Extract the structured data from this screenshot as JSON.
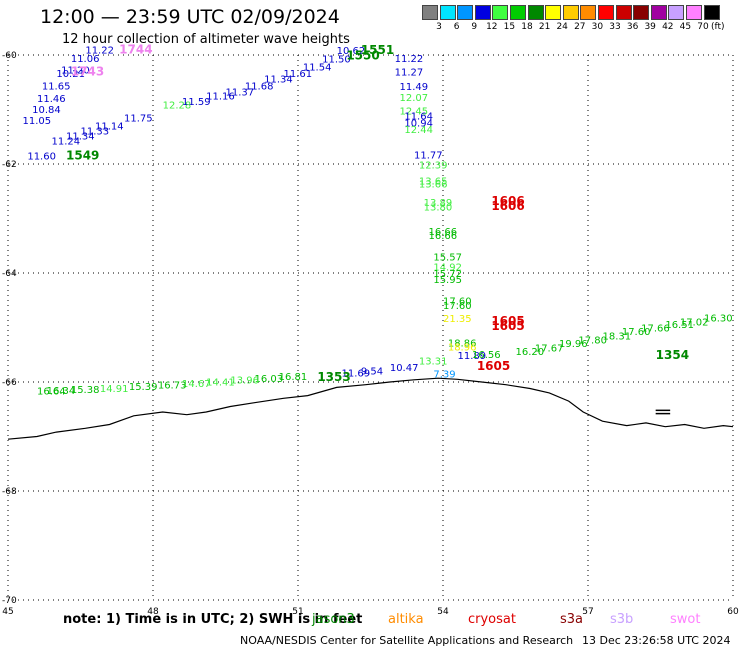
{
  "title": "12:00 — 23:59 UTC 02/09/2024",
  "subtitle": "12 hour collection of altimeter wave heights",
  "legend": {
    "units": "(ft)",
    "bins": [
      {
        "label": "3",
        "color": "#808080"
      },
      {
        "label": "6",
        "color": "#00e5ff"
      },
      {
        "label": "9",
        "color": "#0096ff"
      },
      {
        "label": "12",
        "color": "#0000e0"
      },
      {
        "label": "15",
        "color": "#40ff40"
      },
      {
        "label": "18",
        "color": "#00cc00"
      },
      {
        "label": "21",
        "color": "#008800"
      },
      {
        "label": "24",
        "color": "#ffff00"
      },
      {
        "label": "27",
        "color": "#ffcc00"
      },
      {
        "label": "30",
        "color": "#ff8c00"
      },
      {
        "label": "33",
        "color": "#ff0000"
      },
      {
        "label": "36",
        "color": "#cc0000"
      },
      {
        "label": "39",
        "color": "#880000"
      },
      {
        "label": "42",
        "color": "#a000a0"
      },
      {
        "label": "45",
        "color": "#c8a0ff"
      },
      {
        "label": "70",
        "color": "#ff80ff"
      },
      {
        "label": "",
        "color": "#000000"
      }
    ]
  },
  "map": {
    "lon_ticks": [
      "45",
      "48",
      "51",
      "54",
      "57",
      "60"
    ],
    "lat_ticks": [
      "-60",
      "-62",
      "-64",
      "-66",
      "-68",
      "-70"
    ],
    "passes": [
      {
        "time": "1744",
        "lon": 47.3,
        "lat": -59.97,
        "color": "#ee82ee"
      },
      {
        "time": "1743",
        "lon": 46.3,
        "lat": -60.38,
        "color": "#ee82ee"
      },
      {
        "time": "1549",
        "lon": 46.2,
        "lat": -61.92,
        "color": "#008800"
      },
      {
        "time": "1551",
        "lon": 52.3,
        "lat": -59.98,
        "color": "#008800"
      },
      {
        "time": "1550",
        "lon": 52.0,
        "lat": -60.08,
        "color": "#008800"
      },
      {
        "time": "1606",
        "lon": 55.0,
        "lat": -62.75,
        "color": "#dd0000"
      },
      {
        "time": "1606",
        "lon": 55.0,
        "lat": -62.84,
        "color": "#dd0000"
      },
      {
        "time": "1605",
        "lon": 55.0,
        "lat": -64.95,
        "color": "#dd0000"
      },
      {
        "time": "1605",
        "lon": 55.0,
        "lat": -65.05,
        "color": "#dd0000"
      },
      {
        "time": "1605",
        "lon": 54.7,
        "lat": -65.78,
        "color": "#dd0000"
      },
      {
        "time": "1354",
        "lon": 58.4,
        "lat": -65.58,
        "color": "#008800"
      },
      {
        "time": "1353",
        "lon": 51.4,
        "lat": -65.98,
        "color": "#008800"
      }
    ],
    "values": [
      {
        "v": "11.22",
        "lon": 46.6,
        "lat": -59.97,
        "color": "#0000cc"
      },
      {
        "v": "11.06",
        "lon": 46.3,
        "lat": -60.13,
        "color": "#0000cc"
      },
      {
        "v": "11.20",
        "lon": 46.1,
        "lat": -60.34,
        "color": "#0000cc"
      },
      {
        "v": "10.21",
        "lon": 46.0,
        "lat": -60.4,
        "color": "#0000cc"
      },
      {
        "v": "11.65",
        "lon": 45.7,
        "lat": -60.63,
        "color": "#0000cc"
      },
      {
        "v": "11.46",
        "lon": 45.6,
        "lat": -60.86,
        "color": "#0000cc"
      },
      {
        "v": "10.84",
        "lon": 45.5,
        "lat": -61.06,
        "color": "#0000cc"
      },
      {
        "v": "11.05",
        "lon": 45.3,
        "lat": -61.27,
        "color": "#0000cc"
      },
      {
        "v": "11.24",
        "lon": 45.9,
        "lat": -61.64,
        "color": "#0000cc"
      },
      {
        "v": "11.34",
        "lon": 46.2,
        "lat": -61.55,
        "color": "#0000cc"
      },
      {
        "v": "11.33",
        "lon": 46.5,
        "lat": -61.46,
        "color": "#0000cc"
      },
      {
        "v": "11.14",
        "lon": 46.8,
        "lat": -61.37,
        "color": "#0000cc"
      },
      {
        "v": "11.75",
        "lon": 47.4,
        "lat": -61.22,
        "color": "#0000cc"
      },
      {
        "v": "11.60",
        "lon": 45.4,
        "lat": -61.92,
        "color": "#0000cc"
      },
      {
        "v": "12.28",
        "lon": 48.2,
        "lat": -60.98,
        "color": "#40ee40"
      },
      {
        "v": "11.59",
        "lon": 48.6,
        "lat": -60.92,
        "color": "#0000cc"
      },
      {
        "v": "11.16",
        "lon": 49.1,
        "lat": -60.82,
        "color": "#0000cc"
      },
      {
        "v": "11.37",
        "lon": 49.5,
        "lat": -60.74,
        "color": "#0000cc"
      },
      {
        "v": "11.68",
        "lon": 49.9,
        "lat": -60.63,
        "color": "#0000cc"
      },
      {
        "v": "11.34",
        "lon": 50.3,
        "lat": -60.5,
        "color": "#0000cc"
      },
      {
        "v": "11.61",
        "lon": 50.7,
        "lat": -60.4,
        "color": "#0000cc"
      },
      {
        "v": "11.54",
        "lon": 51.1,
        "lat": -60.28,
        "color": "#0000cc"
      },
      {
        "v": "11.50",
        "lon": 51.5,
        "lat": -60.14,
        "color": "#0000cc"
      },
      {
        "v": "10.62",
        "lon": 51.8,
        "lat": -59.98,
        "color": "#0000cc"
      },
      {
        "v": "11.22",
        "lon": 53.0,
        "lat": -60.13,
        "color": "#0000cc"
      },
      {
        "v": "11.27",
        "lon": 53.0,
        "lat": -60.38,
        "color": "#0000cc"
      },
      {
        "v": "11.49",
        "lon": 53.1,
        "lat": -60.64,
        "color": "#0000cc"
      },
      {
        "v": "12.07",
        "lon": 53.1,
        "lat": -60.84,
        "color": "#40ee40"
      },
      {
        "v": "12.45",
        "lon": 53.1,
        "lat": -61.09,
        "color": "#40ee40"
      },
      {
        "v": "11.64",
        "lon": 53.2,
        "lat": -61.18,
        "color": "#0000cc"
      },
      {
        "v": "10.94",
        "lon": 53.2,
        "lat": -61.31,
        "color": "#0000cc"
      },
      {
        "v": "12.44",
        "lon": 53.2,
        "lat": -61.43,
        "color": "#40ee40"
      },
      {
        "v": "11.77",
        "lon": 53.4,
        "lat": -61.9,
        "color": "#0000cc"
      },
      {
        "v": "12.39",
        "lon": 53.5,
        "lat": -62.08,
        "color": "#40ee40"
      },
      {
        "v": "13.65",
        "lon": 53.5,
        "lat": -62.38,
        "color": "#40ee40"
      },
      {
        "v": "13.66",
        "lon": 53.5,
        "lat": -62.43,
        "color": "#40ee40"
      },
      {
        "v": "13.89",
        "lon": 53.6,
        "lat": -62.77,
        "color": "#40ee40"
      },
      {
        "v": "13.80",
        "lon": 53.6,
        "lat": -62.85,
        "color": "#40ee40"
      },
      {
        "v": "16.66",
        "lon": 53.7,
        "lat": -63.3,
        "color": "#00bb00"
      },
      {
        "v": "16.66",
        "lon": 53.7,
        "lat": -63.38,
        "color": "#00bb00"
      },
      {
        "v": "15.57",
        "lon": 53.8,
        "lat": -63.77,
        "color": "#00bb00"
      },
      {
        "v": "14.92",
        "lon": 53.8,
        "lat": -63.95,
        "color": "#40ee40"
      },
      {
        "v": "15.72",
        "lon": 53.8,
        "lat": -64.07,
        "color": "#00bb00"
      },
      {
        "v": "15.95",
        "lon": 53.8,
        "lat": -64.18,
        "color": "#00bb00"
      },
      {
        "v": "17.60",
        "lon": 54.0,
        "lat": -64.58,
        "color": "#00bb00"
      },
      {
        "v": "17.60",
        "lon": 54.0,
        "lat": -64.66,
        "color": "#00bb00"
      },
      {
        "v": "21.35",
        "lon": 54.0,
        "lat": -64.9,
        "color": "#eeee00"
      },
      {
        "v": "18.86",
        "lon": 54.1,
        "lat": -65.35,
        "color": "#00bb00"
      },
      {
        "v": "18.96",
        "lon": 54.1,
        "lat": -65.42,
        "color": "#eeee00"
      },
      {
        "v": "11.89",
        "lon": 54.3,
        "lat": -65.58,
        "color": "#0000cc"
      },
      {
        "v": "16.56",
        "lon": 54.6,
        "lat": -65.56,
        "color": "#00bb00"
      },
      {
        "v": "16.20",
        "lon": 55.5,
        "lat": -65.5,
        "color": "#00bb00"
      },
      {
        "v": "17.67",
        "lon": 55.9,
        "lat": -65.44,
        "color": "#00bb00"
      },
      {
        "v": "19.96",
        "lon": 56.4,
        "lat": -65.36,
        "color": "#00bb00"
      },
      {
        "v": "17.80",
        "lon": 56.8,
        "lat": -65.29,
        "color": "#00bb00"
      },
      {
        "v": "18.31",
        "lon": 57.3,
        "lat": -65.22,
        "color": "#00bb00"
      },
      {
        "v": "17.60",
        "lon": 57.7,
        "lat": -65.14,
        "color": "#00bb00"
      },
      {
        "v": "17.66",
        "lon": 58.1,
        "lat": -65.07,
        "color": "#00bb00"
      },
      {
        "v": "16.51",
        "lon": 58.6,
        "lat": -65.01,
        "color": "#00bb00"
      },
      {
        "v": "17.02",
        "lon": 58.9,
        "lat": -64.96,
        "color": "#00bb00"
      },
      {
        "v": "16.30",
        "lon": 59.4,
        "lat": -64.89,
        "color": "#00bb00"
      },
      {
        "v": "13.31",
        "lon": 53.5,
        "lat": -65.68,
        "color": "#40ee40"
      },
      {
        "v": "7.39",
        "lon": 53.8,
        "lat": -65.92,
        "color": "#0096ff"
      },
      {
        "v": "10.47",
        "lon": 52.9,
        "lat": -65.8,
        "color": "#0000cc"
      },
      {
        "v": "9.54",
        "lon": 52.3,
        "lat": -65.86,
        "color": "#0000cc"
      },
      {
        "v": "11.69",
        "lon": 51.9,
        "lat": -65.9,
        "color": "#0000cc"
      },
      {
        "v": "16.81",
        "lon": 50.6,
        "lat": -65.96,
        "color": "#00bb00"
      },
      {
        "v": "16.03",
        "lon": 50.1,
        "lat": -66.0,
        "color": "#00bb00"
      },
      {
        "v": "13.96",
        "lon": 49.6,
        "lat": -66.03,
        "color": "#40ee40"
      },
      {
        "v": "14.41",
        "lon": 49.1,
        "lat": -66.06,
        "color": "#40ee40"
      },
      {
        "v": "14.67",
        "lon": 48.6,
        "lat": -66.09,
        "color": "#40ee40"
      },
      {
        "v": "16.73",
        "lon": 48.1,
        "lat": -66.12,
        "color": "#00bb00"
      },
      {
        "v": "15.39",
        "lon": 47.5,
        "lat": -66.15,
        "color": "#00bb00"
      },
      {
        "v": "14.91",
        "lon": 46.9,
        "lat": -66.18,
        "color": "#40ee40"
      },
      {
        "v": "15.38",
        "lon": 46.3,
        "lat": -66.2,
        "color": "#00bb00"
      },
      {
        "v": "16.34",
        "lon": 45.8,
        "lat": -66.22,
        "color": "#00bb00"
      },
      {
        "v": "16.64",
        "lon": 45.6,
        "lat": -66.23,
        "color": "#00bb00"
      }
    ]
  },
  "footer": {
    "note": "note:  1) Time is in UTC; 2) SWH is in feet",
    "satellites": [
      {
        "name": "jason3",
        "color": "#008800"
      },
      {
        "name": "altika",
        "color": "#ff8c00"
      },
      {
        "name": "cryosat",
        "color": "#dd0000"
      },
      {
        "name": "s3a",
        "color": "#880000"
      },
      {
        "name": "s3b",
        "color": "#c8a0ff"
      },
      {
        "name": "swot",
        "color": "#ff80ff"
      }
    ],
    "credit": "NOAA/NESDIS Center for Satellite Applications and Research",
    "timestamp": "13 Dec 23:26:58 UTC 2024"
  }
}
